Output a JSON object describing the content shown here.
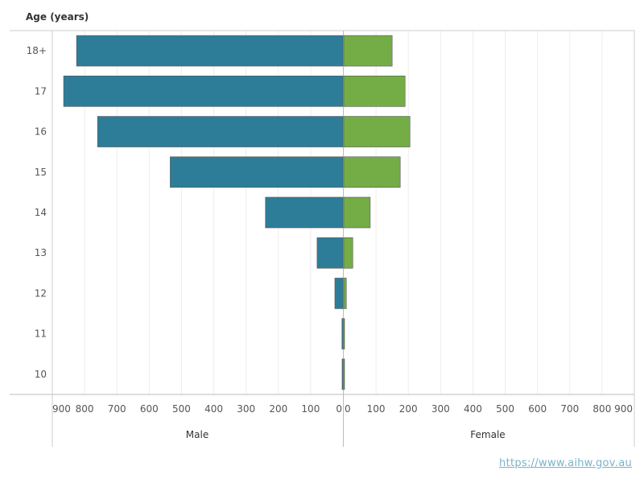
{
  "chart_data": {
    "type": "bar",
    "orientation": "horizontal",
    "subtype": "population-pyramid",
    "title": "Age (years)",
    "categories": [
      "18+",
      "17",
      "16",
      "15",
      "14",
      "13",
      "12",
      "11",
      "10"
    ],
    "series": [
      {
        "name": "Male",
        "color": "#2d7d99",
        "values": [
          825,
          865,
          760,
          535,
          240,
          80,
          25,
          3,
          1
        ]
      },
      {
        "name": "Female",
        "color": "#74ad46",
        "values": [
          150,
          190,
          205,
          175,
          82,
          28,
          8,
          1,
          1
        ]
      }
    ],
    "x_ticks": [
      "900",
      "800",
      "700",
      "600",
      "500",
      "400",
      "300",
      "200",
      "100",
      "0"
    ],
    "xlim": [
      0,
      900
    ],
    "grid": true
  },
  "source_link": "https://www.aihw.gov.au"
}
